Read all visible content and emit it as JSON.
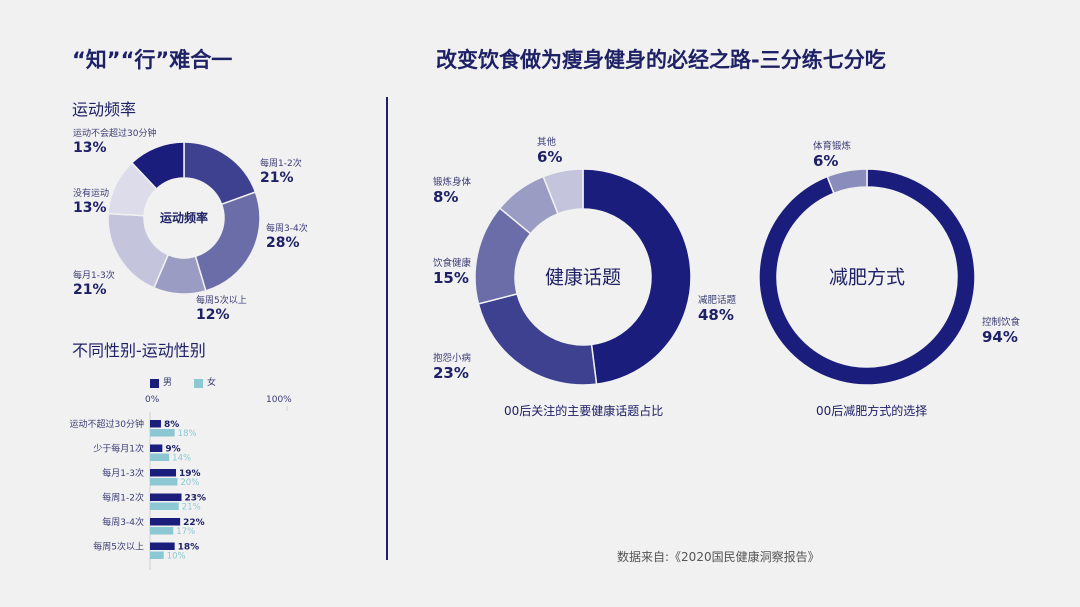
{
  "left": {
    "title": "“知”“行”难合一",
    "section1_title": "运动频率",
    "section2_title": "不同性别-运动性别"
  },
  "right": {
    "title": "改变饮食做为瘦身健身的必经之路-三分练七分吃"
  },
  "source": "数据来自:《2020国民健康洞察报告》",
  "colors": {
    "dark": "#1b1d7c",
    "mid": "#3d418f",
    "mid2": "#6a6da8",
    "light": "#9a9cc4",
    "lighter": "#c4c5dd",
    "lightest": "#dcdcea",
    "teal": "#8cc8d3"
  },
  "chart_data": [
    {
      "type": "pie",
      "center_label": "运动频率",
      "slices": [
        {
          "label": "每周1-2次",
          "value": 21,
          "display": "21%",
          "color": "#3d418f"
        },
        {
          "label": "每周3-4次",
          "value": 28,
          "display": "28%",
          "color": "#6a6da8"
        },
        {
          "label": "每周5次以上",
          "value": 12,
          "display": "12%",
          "color": "#9a9cc4"
        },
        {
          "label": "每月1-3次",
          "value": 21,
          "display": "21%",
          "color": "#c4c5dd"
        },
        {
          "label": "没有运动",
          "value": 13,
          "display": "13%",
          "color": "#dcdcea"
        },
        {
          "label": "运动不会超过30分钟",
          "value": 13,
          "display": "13%",
          "color": "#1b1d7c"
        }
      ]
    },
    {
      "type": "bar",
      "legend": [
        "男",
        "女"
      ],
      "axis_min_label": "0%",
      "axis_max_label": "100%",
      "xlim": [
        0,
        100
      ],
      "categories": [
        "运动不超过30分钟",
        "少于每月1次",
        "每月1-3次",
        "每周1-2次",
        "每周3-4次",
        "每周5次以上"
      ],
      "series": [
        {
          "name": "男",
          "values": [
            8,
            9,
            19,
            23,
            22,
            18
          ],
          "labels": [
            "8%",
            "9%",
            "19%",
            "23%",
            "22%",
            "18%"
          ],
          "color": "#1b1d7c"
        },
        {
          "name": "女",
          "values": [
            18,
            14,
            20,
            21,
            17,
            10
          ],
          "labels": [
            "18%",
            "14%",
            "20%",
            "21%",
            "17%",
            "10%"
          ],
          "color": "#8cc8d3"
        }
      ]
    },
    {
      "type": "pie",
      "center_label": "健康话题",
      "caption": "00后关注的主要健康话题占比",
      "slices": [
        {
          "label": "减肥话题",
          "value": 48,
          "display": "48%",
          "color": "#1b1d7c"
        },
        {
          "label": "抱怨小病",
          "value": 23,
          "display": "23%",
          "color": "#3d418f"
        },
        {
          "label": "饮食健康",
          "value": 15,
          "display": "15%",
          "color": "#6a6da8"
        },
        {
          "label": "锻炼身体",
          "value": 8,
          "display": "8%",
          "color": "#9a9cc4"
        },
        {
          "label": "其他",
          "value": 6,
          "display": "6%",
          "color": "#c4c5dd"
        }
      ]
    },
    {
      "type": "pie",
      "center_label": "减肥方式",
      "caption": "00后减肥方式的选择",
      "slices": [
        {
          "label": "控制饮食",
          "value": 94,
          "display": "94%",
          "color": "#1b1d7c"
        },
        {
          "label": "体育锻炼",
          "value": 6,
          "display": "6%",
          "color": "#8a8cbc"
        }
      ]
    }
  ]
}
